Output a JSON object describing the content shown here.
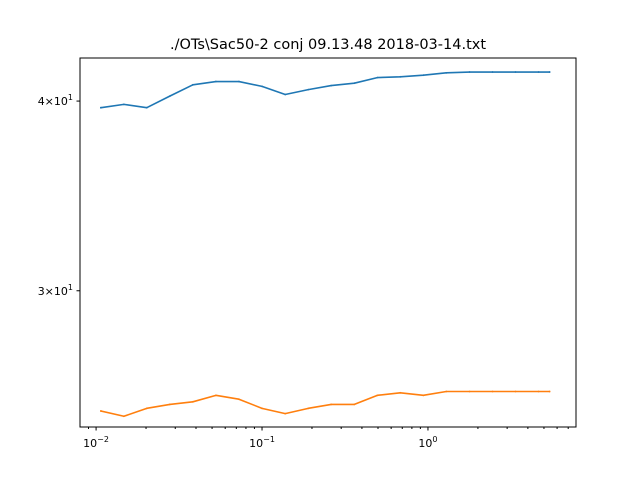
{
  "chart_data": {
    "type": "line",
    "title": "./OTs\\Sac50-2 conj   09.13.48 2018-03-14.txt",
    "xlabel": "",
    "ylabel": "",
    "x_scale": "log",
    "y_scale": "log",
    "xlim": [
      0.008,
      7.8
    ],
    "ylim": [
      24.4,
      42.7
    ],
    "x_major_ticks": [
      {
        "value": 0.01,
        "label": "10",
        "exp": "−2"
      },
      {
        "value": 0.1,
        "label": "10",
        "exp": "−1"
      },
      {
        "value": 1,
        "label": "10",
        "exp": "0"
      }
    ],
    "y_major_ticks": [
      {
        "value": 30,
        "label": "3×10",
        "exp": "1"
      },
      {
        "value": 40,
        "label": "4×10",
        "exp": "1"
      }
    ],
    "x_minor_ticks": [
      0.009,
      0.02,
      0.03,
      0.04,
      0.05,
      0.06,
      0.07,
      0.08,
      0.09,
      0.2,
      0.3,
      0.4,
      0.5,
      0.6,
      0.7,
      0.8,
      0.9,
      2,
      3,
      4,
      5,
      6,
      7
    ],
    "x": [
      0.0107,
      0.0147,
      0.0202,
      0.0278,
      0.0383,
      0.0527,
      0.0726,
      0.1,
      0.138,
      0.19,
      0.261,
      0.36,
      0.495,
      0.681,
      0.938,
      1.29,
      1.78,
      2.45,
      3.37,
      4.64,
      5.4
    ],
    "series": [
      {
        "color": "#1f77b4",
        "values": [
          39.6,
          39.8,
          39.6,
          40.3,
          41.0,
          41.2,
          41.2,
          40.9,
          40.4,
          40.7,
          40.95,
          41.1,
          41.45,
          41.5,
          41.6,
          41.75,
          41.8,
          41.8,
          41.8,
          41.8,
          41.8
        ]
      },
      {
        "color": "#ff7f0e",
        "values": [
          25.0,
          24.8,
          25.1,
          25.25,
          25.35,
          25.6,
          25.45,
          25.1,
          24.9,
          25.1,
          25.25,
          25.25,
          25.6,
          25.7,
          25.6,
          25.75,
          25.75,
          25.75,
          25.75,
          25.75,
          25.75
        ]
      }
    ]
  }
}
